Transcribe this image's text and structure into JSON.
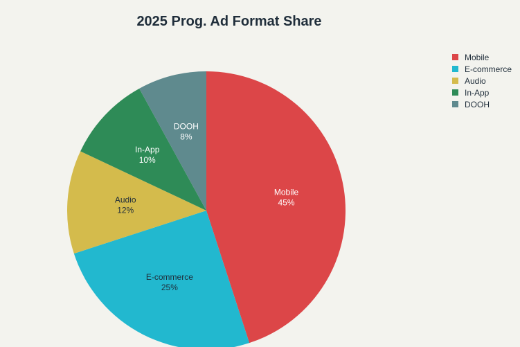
{
  "chart_data": {
    "type": "pie",
    "title": "2025 Prog. Ad Format Share",
    "categories": [
      "Mobile",
      "E-commerce",
      "Audio",
      "In-App",
      "DOOH"
    ],
    "values": [
      45,
      25,
      12,
      10,
      8
    ],
    "value_labels": [
      "45%",
      "25%",
      "12%",
      "10%",
      "8%"
    ],
    "colors": [
      "#dc4648",
      "#22b8cf",
      "#d4bb4c",
      "#2e8b57",
      "#5f8a8e"
    ],
    "label_colors": [
      "#ffffff",
      "#1f2d3a",
      "#1f2d3a",
      "#ffffff",
      "#ffffff"
    ],
    "start_angle": "12 o'clock",
    "direction": "clockwise",
    "legend_position": "top-right"
  }
}
